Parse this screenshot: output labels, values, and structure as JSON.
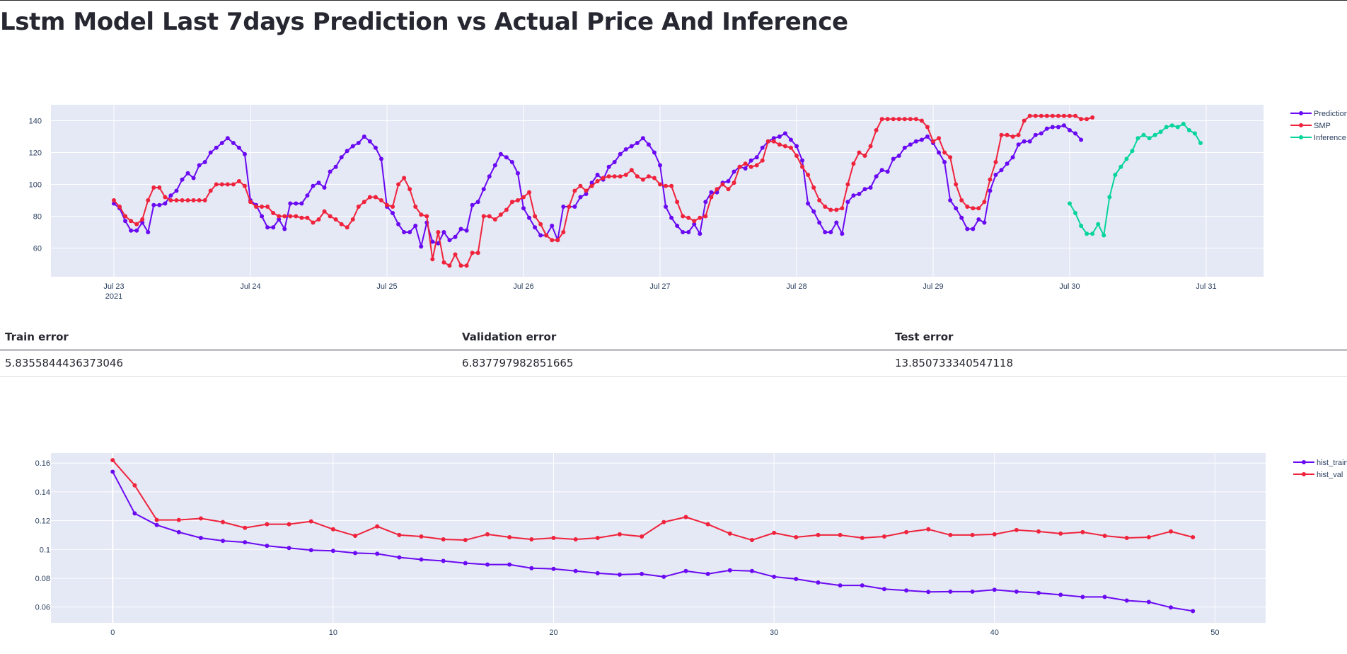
{
  "page": {
    "title": "Lstm Model Last 7days Prediction vs Actual Price And Inference"
  },
  "colors": {
    "prediction": "#6a0af2",
    "smp": "#ef233c",
    "inference": "#08d59b",
    "plot_bg": "#e5e8f5",
    "axis_text": "#2a3f5f"
  },
  "errors": {
    "headers": [
      "Train error",
      "Validation error",
      "Test error"
    ],
    "values": [
      "5.8355844436373046",
      "6.837797982851665",
      "13.850733340547118"
    ]
  },
  "chart_data": [
    {
      "type": "line",
      "x_start": "2021-07-23 00:00",
      "x_interval_hours": 1,
      "xaxis": {
        "ticks": [
          "Jul 23",
          "Jul 24",
          "Jul 25",
          "Jul 26",
          "Jul 27",
          "Jul 28",
          "Jul 29",
          "Jul 30",
          "Jul 31"
        ],
        "year_label": "2021"
      },
      "yaxis": {
        "range": [
          42,
          150
        ],
        "ticks": [
          60,
          80,
          100,
          120,
          140
        ]
      },
      "legend": "top-right",
      "series": [
        {
          "name": "Prediction",
          "start_hour": 0,
          "values": [
            88,
            85,
            77,
            71,
            71,
            76,
            70,
            87,
            87,
            88,
            93,
            96,
            103,
            107,
            104,
            112,
            114,
            120,
            123,
            126,
            129,
            126,
            123,
            119,
            90,
            87,
            80,
            73,
            73,
            78,
            72,
            88,
            88,
            88,
            93,
            99,
            101,
            98,
            108,
            111,
            117,
            121,
            124,
            126,
            130,
            127,
            123,
            116,
            86,
            82,
            75,
            70,
            70,
            74,
            61,
            76,
            64,
            63,
            70,
            65,
            67,
            72,
            71,
            87,
            89,
            97,
            105,
            112,
            119,
            117,
            114,
            107,
            85,
            79,
            73,
            68,
            68,
            74,
            65,
            86,
            86,
            86,
            92,
            94,
            101,
            106,
            103,
            111,
            114,
            119,
            122,
            124,
            126,
            129,
            125,
            120,
            112,
            86,
            79,
            74,
            70,
            70,
            75,
            69,
            89,
            95,
            95,
            101,
            102,
            108,
            111,
            110,
            115,
            117,
            123,
            127,
            129,
            130,
            132,
            128,
            124,
            115,
            88,
            83,
            76,
            70,
            70,
            76,
            69,
            89,
            93,
            94,
            97,
            98,
            105,
            109,
            108,
            116,
            118,
            123,
            125,
            127,
            128,
            130,
            126,
            120,
            114,
            90,
            85,
            79,
            72,
            72,
            78,
            76,
            96,
            106,
            109,
            113,
            117,
            125,
            127,
            127,
            131,
            132,
            135,
            136,
            136,
            137,
            134,
            132,
            128
          ]
        },
        {
          "name": "SMP",
          "start_hour": 0,
          "values": [
            90,
            86,
            80,
            77,
            75,
            78,
            90,
            98,
            98,
            92,
            90,
            90,
            90,
            90,
            90,
            90,
            90,
            96,
            100,
            100,
            100,
            100,
            102,
            99,
            89,
            86,
            86,
            86,
            82,
            80,
            80,
            80,
            80,
            79,
            79,
            76,
            78,
            83,
            80,
            78,
            75,
            73,
            78,
            86,
            89,
            92,
            92,
            90,
            87,
            86,
            100,
            104,
            97,
            86,
            81,
            80,
            53,
            70,
            51,
            49,
            56,
            49,
            49,
            57,
            57,
            80,
            80,
            78,
            81,
            84,
            89,
            90,
            92,
            95,
            80,
            75,
            68,
            65,
            65,
            70,
            86,
            96,
            99,
            96,
            99,
            102,
            104,
            105,
            105,
            105,
            106,
            109,
            105,
            103,
            105,
            104,
            100,
            99,
            99,
            89,
            80,
            79,
            77,
            79,
            80,
            92,
            97,
            100,
            97,
            101,
            111,
            113,
            111,
            112,
            115,
            127,
            127,
            125,
            124,
            123,
            118,
            111,
            106,
            98,
            90,
            86,
            84,
            84,
            85,
            100,
            113,
            120,
            118,
            124,
            134,
            141,
            141,
            141,
            141,
            141,
            141,
            141,
            140,
            136,
            127,
            129,
            120,
            117,
            100,
            90,
            86,
            85,
            85,
            89,
            103,
            114,
            131,
            131,
            130,
            131,
            140,
            143,
            143,
            143,
            143,
            143,
            143,
            143,
            143,
            143,
            141,
            141,
            142
          ]
        },
        {
          "name": "Inference",
          "start_hour": 168,
          "values": [
            88,
            82,
            74,
            69,
            69,
            75,
            68,
            92,
            106,
            111,
            116,
            121,
            129,
            131,
            129,
            131,
            133,
            136,
            137,
            136,
            138,
            134,
            132,
            126
          ]
        }
      ]
    },
    {
      "type": "line",
      "x": [
        0,
        1,
        2,
        3,
        4,
        5,
        6,
        7,
        8,
        9,
        10,
        11,
        12,
        13,
        14,
        15,
        16,
        17,
        18,
        19,
        20,
        21,
        22,
        23,
        24,
        25,
        26,
        27,
        28,
        29,
        30,
        31,
        32,
        33,
        34,
        35,
        36,
        37,
        38,
        39,
        40,
        41,
        42,
        43,
        44,
        45,
        46,
        47,
        48,
        49
      ],
      "xaxis": {
        "range": [
          -2.8,
          52.3
        ],
        "ticks": [
          0,
          10,
          20,
          30,
          40,
          50
        ]
      },
      "yaxis": {
        "range": [
          0.049,
          0.167
        ],
        "ticks": [
          "0.16",
          "0.14",
          "0.12",
          "0.1",
          "0.08",
          "0.06"
        ]
      },
      "legend": "top-right",
      "series": [
        {
          "name": "hist_train",
          "values": [
            0.154,
            0.125,
            0.117,
            0.112,
            0.108,
            0.106,
            0.105,
            0.1025,
            0.101,
            0.0995,
            0.099,
            0.0975,
            0.097,
            0.0945,
            0.093,
            0.092,
            0.0905,
            0.0895,
            0.0895,
            0.087,
            0.0865,
            0.085,
            0.0835,
            0.0825,
            0.083,
            0.081,
            0.085,
            0.083,
            0.0855,
            0.085,
            0.081,
            0.0795,
            0.077,
            0.075,
            0.075,
            0.0725,
            0.0715,
            0.0705,
            0.0707,
            0.0707,
            0.072,
            0.0707,
            0.0698,
            0.0685,
            0.067,
            0.067,
            0.0645,
            0.0635,
            0.0597,
            0.0572
          ]
        },
        {
          "name": "hist_val",
          "values": [
            0.162,
            0.1445,
            0.1205,
            0.1205,
            0.1215,
            0.119,
            0.115,
            0.1175,
            0.1175,
            0.1195,
            0.114,
            0.1095,
            0.116,
            0.11,
            0.109,
            0.107,
            0.1065,
            0.1105,
            0.1085,
            0.107,
            0.108,
            0.107,
            0.108,
            0.1105,
            0.109,
            0.119,
            0.1225,
            0.1175,
            0.111,
            0.1065,
            0.1115,
            0.1085,
            0.11,
            0.11,
            0.108,
            0.109,
            0.112,
            0.114,
            0.11,
            0.11,
            0.1105,
            0.1135,
            0.1125,
            0.111,
            0.112,
            0.1095,
            0.108,
            0.1085,
            0.1125,
            0.1085
          ]
        }
      ]
    }
  ]
}
